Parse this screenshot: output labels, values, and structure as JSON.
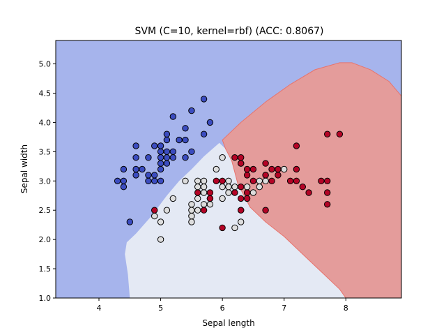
{
  "chart_data": {
    "type": "scatter",
    "title": "SVM (C=10, kernel=rbf) (ACC: 0.8067)",
    "xlabel": "Sepal length",
    "ylabel": "Sepal width",
    "xlim": [
      3.3,
      8.9
    ],
    "ylim": [
      1.0,
      5.4
    ],
    "xticks": [
      "4",
      "5",
      "6",
      "7",
      "8"
    ],
    "yticks": [
      "1.0",
      "1.5",
      "2.0",
      "2.5",
      "3.0",
      "3.5",
      "4.0",
      "4.5",
      "5.0"
    ],
    "xtick_values": [
      4,
      5,
      6,
      7,
      8
    ],
    "ytick_values": [
      1.0,
      1.5,
      2.0,
      2.5,
      3.0,
      3.5,
      4.0,
      4.5,
      5.0
    ],
    "grid": false,
    "legend": "none",
    "colors": {
      "class0_region": "#a6b4ec",
      "class1_region": "#e4e9f4",
      "class2_region": "#e49c9b",
      "class2_edge": "#e8736c",
      "class0_point": "#3b4cc0",
      "class1_point": "#dddddd",
      "class2_point": "#b40426",
      "point_edge": "#000000"
    },
    "regions": [
      {
        "class": 1,
        "boundary": [
          [
            4.5,
            1.0
          ],
          [
            4.47,
            1.4
          ],
          [
            4.42,
            1.75
          ],
          [
            4.45,
            1.95
          ],
          [
            4.6,
            2.1
          ],
          [
            4.85,
            2.4
          ],
          [
            5.1,
            2.75
          ],
          [
            5.3,
            3.0
          ],
          [
            5.5,
            3.2
          ],
          [
            5.7,
            3.42
          ],
          [
            5.95,
            3.65
          ],
          [
            6.05,
            3.55
          ],
          [
            6.15,
            3.35
          ],
          [
            6.2,
            3.15
          ],
          [
            6.25,
            2.95
          ],
          [
            6.35,
            2.75
          ],
          [
            6.45,
            2.55
          ],
          [
            6.7,
            2.3
          ],
          [
            7.0,
            2.05
          ],
          [
            7.3,
            1.75
          ],
          [
            7.6,
            1.45
          ],
          [
            7.9,
            1.15
          ],
          [
            8.0,
            1.0
          ]
        ]
      },
      {
        "class": 2,
        "boundary": [
          [
            8.0,
            1.0
          ],
          [
            7.9,
            1.15
          ],
          [
            7.6,
            1.45
          ],
          [
            7.3,
            1.75
          ],
          [
            7.0,
            2.05
          ],
          [
            6.7,
            2.3
          ],
          [
            6.45,
            2.55
          ],
          [
            6.35,
            2.75
          ],
          [
            6.25,
            2.95
          ],
          [
            6.2,
            3.15
          ],
          [
            6.15,
            3.35
          ],
          [
            6.05,
            3.55
          ],
          [
            6.0,
            3.7
          ],
          [
            6.3,
            4.0
          ],
          [
            6.7,
            4.35
          ],
          [
            7.1,
            4.65
          ],
          [
            7.5,
            4.9
          ],
          [
            7.9,
            5.02
          ],
          [
            8.1,
            5.02
          ],
          [
            8.4,
            4.9
          ],
          [
            8.7,
            4.7
          ],
          [
            8.9,
            4.45
          ],
          [
            8.9,
            1.0
          ]
        ]
      }
    ],
    "points": {
      "class0": [
        [
          4.3,
          3.0
        ],
        [
          4.4,
          2.9
        ],
        [
          4.4,
          3.0
        ],
        [
          4.4,
          3.2
        ],
        [
          4.5,
          2.3
        ],
        [
          4.6,
          3.1
        ],
        [
          4.6,
          3.2
        ],
        [
          4.6,
          3.4
        ],
        [
          4.6,
          3.6
        ],
        [
          4.7,
          3.2
        ],
        [
          4.8,
          3.0
        ],
        [
          4.8,
          3.1
        ],
        [
          4.8,
          3.4
        ],
        [
          4.9,
          3.0
        ],
        [
          4.9,
          3.1
        ],
        [
          4.9,
          3.6
        ],
        [
          5.0,
          3.0
        ],
        [
          5.0,
          3.2
        ],
        [
          5.0,
          3.3
        ],
        [
          5.0,
          3.4
        ],
        [
          5.0,
          3.5
        ],
        [
          5.0,
          3.6
        ],
        [
          5.1,
          3.3
        ],
        [
          5.1,
          3.4
        ],
        [
          5.1,
          3.5
        ],
        [
          5.1,
          3.7
        ],
        [
          5.1,
          3.8
        ],
        [
          5.2,
          3.4
        ],
        [
          5.2,
          3.5
        ],
        [
          5.2,
          4.1
        ],
        [
          5.3,
          3.7
        ],
        [
          5.4,
          3.4
        ],
        [
          5.4,
          3.7
        ],
        [
          5.4,
          3.9
        ],
        [
          5.5,
          3.5
        ],
        [
          5.5,
          4.2
        ],
        [
          5.7,
          3.8
        ],
        [
          5.7,
          4.4
        ],
        [
          5.8,
          4.0
        ]
      ],
      "class1": [
        [
          4.9,
          2.4
        ],
        [
          5.0,
          2.0
        ],
        [
          5.0,
          2.3
        ],
        [
          5.1,
          2.5
        ],
        [
          5.2,
          2.7
        ],
        [
          5.4,
          3.0
        ],
        [
          5.5,
          2.3
        ],
        [
          5.5,
          2.4
        ],
        [
          5.5,
          2.5
        ],
        [
          5.5,
          2.6
        ],
        [
          5.6,
          2.5
        ],
        [
          5.6,
          2.7
        ],
        [
          5.6,
          2.9
        ],
        [
          5.6,
          3.0
        ],
        [
          5.7,
          2.6
        ],
        [
          5.7,
          2.8
        ],
        [
          5.7,
          2.9
        ],
        [
          5.7,
          3.0
        ],
        [
          5.8,
          2.6
        ],
        [
          5.8,
          2.7
        ],
        [
          5.9,
          3.2
        ],
        [
          6.0,
          2.7
        ],
        [
          6.0,
          2.9
        ],
        [
          6.0,
          3.4
        ],
        [
          6.1,
          2.8
        ],
        [
          6.1,
          2.9
        ],
        [
          6.1,
          3.0
        ],
        [
          6.2,
          2.2
        ],
        [
          6.2,
          2.9
        ],
        [
          6.3,
          2.3
        ],
        [
          6.3,
          2.5
        ],
        [
          6.3,
          3.3
        ],
        [
          6.4,
          2.9
        ],
        [
          6.5,
          2.8
        ],
        [
          6.6,
          2.9
        ],
        [
          6.6,
          3.0
        ],
        [
          6.7,
          3.0
        ],
        [
          6.7,
          3.1
        ],
        [
          7.0,
          3.2
        ]
      ],
      "class2": [
        [
          4.9,
          2.5
        ],
        [
          5.6,
          2.8
        ],
        [
          5.7,
          2.5
        ],
        [
          5.8,
          2.7
        ],
        [
          5.8,
          2.8
        ],
        [
          5.9,
          3.0
        ],
        [
          6.0,
          2.2
        ],
        [
          6.0,
          3.0
        ],
        [
          6.2,
          2.8
        ],
        [
          6.2,
          3.4
        ],
        [
          6.3,
          2.5
        ],
        [
          6.3,
          2.7
        ],
        [
          6.3,
          2.9
        ],
        [
          6.3,
          3.3
        ],
        [
          6.3,
          3.4
        ],
        [
          6.4,
          2.7
        ],
        [
          6.4,
          2.8
        ],
        [
          6.4,
          3.1
        ],
        [
          6.4,
          3.2
        ],
        [
          6.5,
          3.0
        ],
        [
          6.5,
          3.2
        ],
        [
          6.7,
          2.5
        ],
        [
          6.7,
          3.1
        ],
        [
          6.7,
          3.3
        ],
        [
          6.8,
          3.0
        ],
        [
          6.8,
          3.2
        ],
        [
          6.9,
          3.1
        ],
        [
          6.9,
          3.2
        ],
        [
          7.1,
          3.0
        ],
        [
          7.2,
          3.0
        ],
        [
          7.2,
          3.2
        ],
        [
          7.2,
          3.6
        ],
        [
          7.3,
          2.9
        ],
        [
          7.4,
          2.8
        ],
        [
          7.6,
          3.0
        ],
        [
          7.7,
          2.6
        ],
        [
          7.7,
          2.8
        ],
        [
          7.7,
          3.0
        ],
        [
          7.7,
          3.8
        ],
        [
          7.9,
          3.8
        ]
      ]
    }
  }
}
